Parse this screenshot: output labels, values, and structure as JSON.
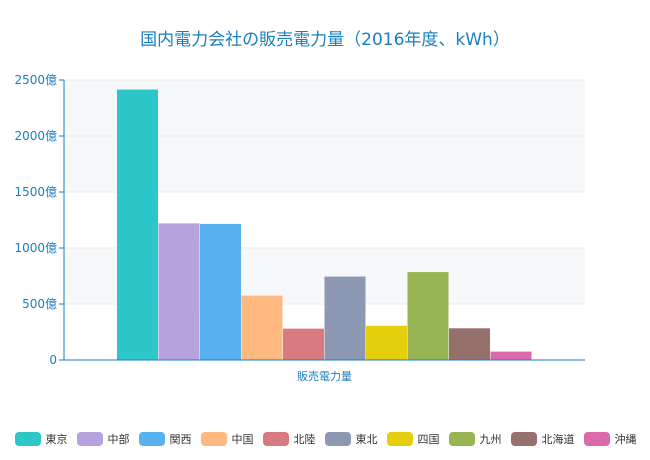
{
  "chart_data": {
    "type": "bar",
    "title": "国内電力会社の販売電力量（2016年度、kWh）",
    "categories": [
      "販売電力量"
    ],
    "ylim": [
      0,
      2500
    ],
    "y_ticks": [
      "0",
      "500億",
      "1000億",
      "1500億",
      "2000億",
      "2500億"
    ],
    "y_tick_values": [
      0,
      500,
      1000,
      1500,
      2000,
      2500
    ],
    "grid": true,
    "legend_position": "bottom",
    "series": [
      {
        "name": "東京",
        "values": [
          2415
        ],
        "color": "#2ec7c9"
      },
      {
        "name": "中部",
        "values": [
          1220
        ],
        "color": "#b6a2de"
      },
      {
        "name": "関西",
        "values": [
          1215
        ],
        "color": "#5ab1ef"
      },
      {
        "name": "中国",
        "values": [
          575
        ],
        "color": "#ffb980"
      },
      {
        "name": "北陸",
        "values": [
          280
        ],
        "color": "#d87a80"
      },
      {
        "name": "東北",
        "values": [
          745
        ],
        "color": "#8d98b3"
      },
      {
        "name": "四国",
        "values": [
          305
        ],
        "color": "#e5cf0d"
      },
      {
        "name": "九州",
        "values": [
          785
        ],
        "color": "#97b552"
      },
      {
        "name": "北海道",
        "values": [
          283
        ],
        "color": "#95706d"
      },
      {
        "name": "沖縄",
        "values": [
          75
        ],
        "color": "#dc69aa"
      }
    ]
  },
  "colors": {
    "title": "#1a7fbf",
    "axis": "#1a7fbf",
    "band": "#f7f8fa",
    "grid": "#eeeeee"
  }
}
